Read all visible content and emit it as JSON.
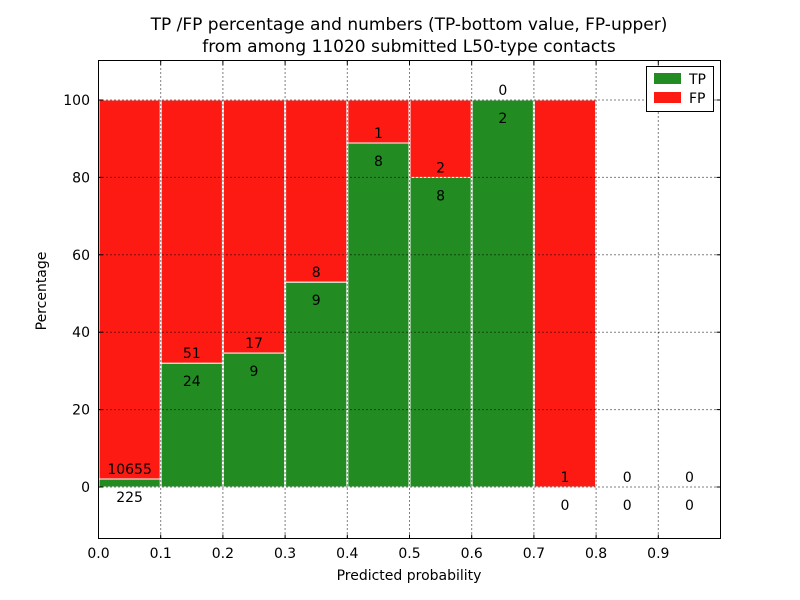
{
  "figure": {
    "title_line1": "TP /FP percentage and numbers (TP-bottom value, FP-upper)",
    "title_line2": "from among 11020 submitted L50-type contacts"
  },
  "chart_data": {
    "type": "bar",
    "stacked": true,
    "normalized_to_percent": true,
    "title": "TP /FP percentage and numbers (TP-bottom value, FP-upper)\nfrom among 11020 submitted L50-type contacts",
    "xlabel": "Predicted probability",
    "ylabel": "Percentage",
    "xlim": [
      0.0,
      1.0
    ],
    "ylim": [
      -13,
      110
    ],
    "grid": "dotted, both axes, drawn over bars",
    "legend_position": "upper right",
    "bin_edges": [
      0.0,
      0.1,
      0.2,
      0.3,
      0.4,
      0.5,
      0.6,
      0.7,
      0.8,
      0.9,
      1.0
    ],
    "categories": [
      "0.0-0.1",
      "0.1-0.2",
      "0.2-0.3",
      "0.3-0.4",
      "0.4-0.5",
      "0.5-0.6",
      "0.6-0.7",
      "0.7-0.8",
      "0.8-0.9",
      "0.9-1.0"
    ],
    "series": [
      {
        "name": "TP",
        "color": "#228b22",
        "values": [
          225,
          24,
          9,
          9,
          8,
          8,
          2,
          0,
          0,
          0
        ]
      },
      {
        "name": "FP",
        "color": "#fd1a13",
        "values": [
          10655,
          51,
          17,
          8,
          1,
          2,
          0,
          1,
          0,
          0
        ]
      }
    ],
    "xtick_labels": [
      "0.0",
      "0.1",
      "0.2",
      "0.3",
      "0.4",
      "0.5",
      "0.6",
      "0.7",
      "0.8",
      "0.9"
    ],
    "ytick_labels": [
      "0",
      "20",
      "40",
      "60",
      "80",
      "100"
    ],
    "ytick_values": [
      0,
      20,
      40,
      60,
      80,
      100
    ],
    "legend": {
      "entries": [
        {
          "label": "TP",
          "color": "#228b22"
        },
        {
          "label": "FP",
          "color": "#fd1a13"
        }
      ]
    },
    "colors": {
      "tp": "#228b22",
      "fp": "#fd1a13",
      "grid": "#000000",
      "frame": "#000000",
      "bar_edge": "#ffffff"
    }
  }
}
